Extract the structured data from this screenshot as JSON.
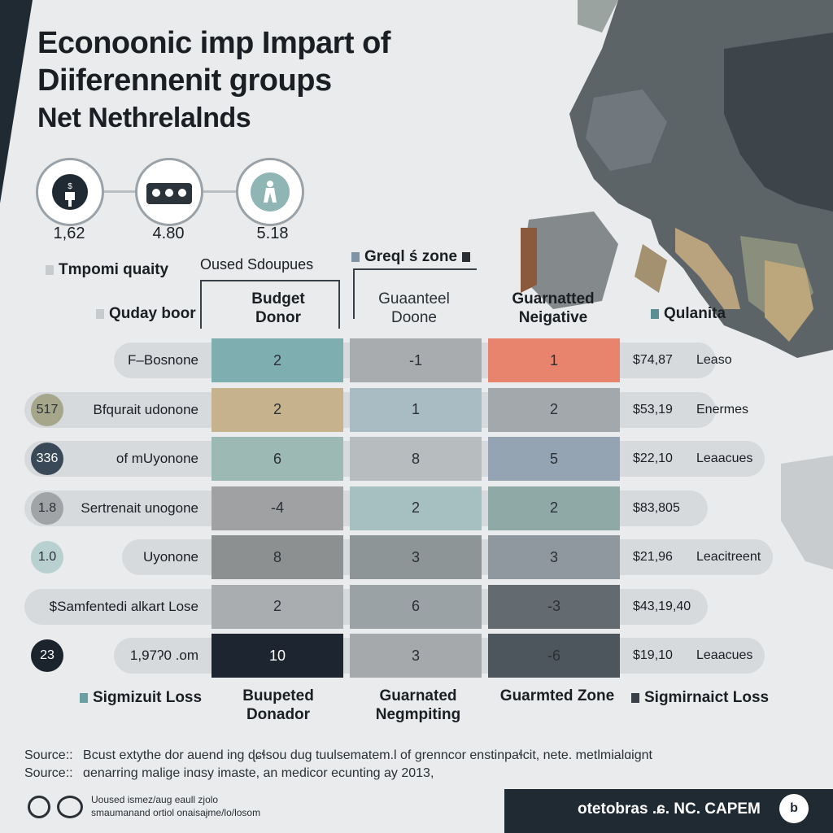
{
  "title": {
    "line1": "Econoonic imp Impart of",
    "line2": "Diiferennenit groups",
    "line3": "Net Nethrelalnds"
  },
  "stats": [
    {
      "value": "1,62",
      "icon": "person-dollar-icon"
    },
    {
      "value": "4.80",
      "icon": "group-people-icon"
    },
    {
      "value": "5.18",
      "icon": "person-icon"
    }
  ],
  "headers": {
    "tmpomi": "Tmpomi quaity",
    "oused": "Oused Sdoupues",
    "greql": "Greql ś zone",
    "quday": "Quday boor",
    "qualanita": "Qulanita",
    "col1_top": "Budget Donor",
    "col2_top": "Guaanteel Doone",
    "col3_top": "Guarnatted Neigative",
    "col1_bottom": "Buupeted Donador",
    "col2_bottom": "Guarnated Negmpiting",
    "col3_bottom": "Guarmted Zone",
    "left_bottom": "Sigmizuit Loss",
    "right_bottom": "Sigmirnaict Loss"
  },
  "chart_data": {
    "type": "table",
    "columns": [
      "Budget Donor",
      "Guaanteel Doone",
      "Guarnatted Neigative"
    ],
    "rows": [
      {
        "badge": "",
        "label": "F–Bosnone",
        "values": [
          2,
          -1,
          1
        ],
        "colors": [
          "#7faeb0",
          "#a8acae",
          "#e8836d"
        ],
        "amount": "$74,87",
        "amount_label": "Leaso"
      },
      {
        "badge": "517",
        "label": "Bfqurait udonone",
        "values": [
          2,
          1,
          2
        ],
        "colors": [
          "#c7b28e",
          "#a9bcc4",
          "#a3a8ac"
        ],
        "amount": "$53,19",
        "amount_label": "Enermes"
      },
      {
        "badge": "336",
        "label": "of mUyonone",
        "values": [
          6,
          8,
          5
        ],
        "colors": [
          "#9cb9b4",
          "#b7bcbe",
          "#94a4b2"
        ],
        "amount": "$22,10",
        "amount_label": "Leaacues"
      },
      {
        "badge": "1.8",
        "label": "Sertrenait unogone",
        "values": [
          -4,
          2,
          2
        ],
        "colors": [
          "#9fa1a3",
          "#a6c0c2",
          "#8fa9a6"
        ],
        "amount": "$83,805",
        "amount_label": ""
      },
      {
        "badge": "1.0",
        "label": "Uyonone",
        "values": [
          8,
          3,
          3
        ],
        "colors": [
          "#8c9091",
          "#8d9597",
          "#8f989e"
        ],
        "amount": "$21,96",
        "amount_label": "Leacitreent"
      },
      {
        "badge": "",
        "label": "$Samfentedi alkart Lose",
        "values": [
          2,
          6,
          -3
        ],
        "colors": [
          "#a9adaf",
          "#9ba2a6",
          "#636a70"
        ],
        "amount": "$43,19,40",
        "amount_label": ""
      },
      {
        "badge": "23",
        "label": "1,97ʔ0 .om",
        "values": [
          10,
          3,
          -6
        ],
        "colors": [
          "#1c2530",
          "#a5a9ac",
          "#4d565d"
        ],
        "amount": "$19,10",
        "amount_label": "Leaacues"
      }
    ]
  },
  "footer": {
    "source1_label": "Source::",
    "source1_text": "Bcust extythe dor auend ing ɖɕɬsou dug tuulsematem.l of ɡrenncor enstinpaɬcit, nete. metlmialɑignt",
    "source2_label": "Source::",
    "source2_text": "ɑenarring malige inɑsy imaste, an medicor ecunting ay 2013,",
    "small1": "Uoused ismez/aug eaull zjolo",
    "small2": "smaumanand ortiol onaisaɉme/lo/losom",
    "brand": "otetobras .ɕ. NC. CAPEM",
    "brand_icon": "b"
  },
  "colors": {
    "dark": "#1f2a33",
    "salmon": "#e8836d",
    "teal": "#7faeb0"
  }
}
